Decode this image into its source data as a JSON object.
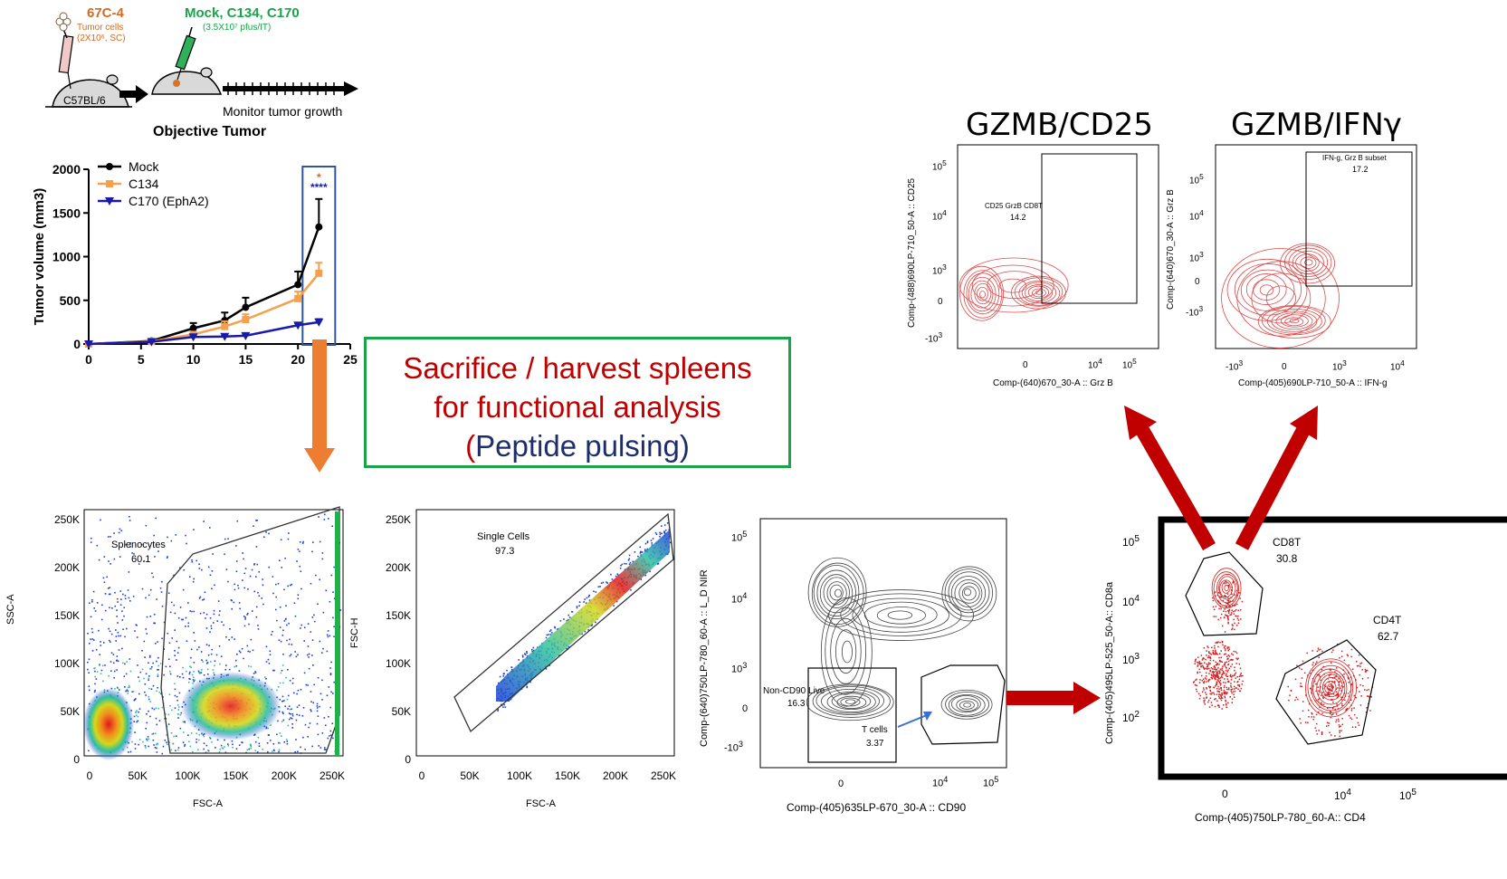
{
  "schema": {
    "cell_line": "67C-4",
    "tumor_cells": "Tumor cells",
    "tumor_dose": "(2X10⁶, SC)",
    "treatments": "Mock, C134, C170",
    "treatment_dose": "(3.5X10⁷ pfus/IT)",
    "mouse_strain": "C57BL/6",
    "monitor_label": "Monitor tumor growth",
    "title": "Objective Tumor"
  },
  "growth_chart": {
    "chart_data": {
      "type": "line",
      "ylabel": "Tumor volume  (mm3)",
      "xlim": [
        0,
        25
      ],
      "ylim": [
        0,
        2000
      ],
      "x_ticks": [
        "0",
        "5",
        "10",
        "15",
        "20",
        "25"
      ],
      "y_ticks": [
        "0",
        "500",
        "1000",
        "1500",
        "2000"
      ],
      "series": [
        {
          "name": "Mock",
          "color": "#000000",
          "marker": "circle",
          "x": [
            0,
            6,
            10,
            13,
            15,
            20,
            22
          ],
          "y": [
            0,
            35,
            180,
            270,
            420,
            680,
            1340
          ],
          "err": [
            0,
            10,
            60,
            90,
            110,
            150,
            320
          ]
        },
        {
          "name": "C134",
          "color": "#f5a04a",
          "marker": "square",
          "x": [
            0,
            6,
            10,
            13,
            15,
            20,
            22
          ],
          "y": [
            0,
            30,
            110,
            200,
            280,
            520,
            810
          ],
          "err": [
            0,
            10,
            30,
            60,
            60,
            80,
            120
          ]
        },
        {
          "name": "C170 (EphA2)",
          "color": "#1a1aa8",
          "marker": "triangle",
          "x": [
            0,
            6,
            10,
            13,
            15,
            20,
            22
          ],
          "y": [
            0,
            25,
            80,
            85,
            95,
            215,
            250
          ],
          "err": [
            0,
            5,
            10,
            10,
            10,
            25,
            35
          ]
        }
      ],
      "annotations": [
        {
          "text": "**",
          "x": 13,
          "color": "#1a1aa8"
        },
        {
          "text": "**",
          "x": 15,
          "color": "#1a1aa8"
        },
        {
          "text": "***",
          "x": 20,
          "color": "#1a1aa8"
        },
        {
          "text": "*",
          "x": 22,
          "color": "#e8631a"
        },
        {
          "text": "****",
          "x": 22,
          "color": "#1a1aa8"
        }
      ]
    }
  },
  "callout": {
    "line1": "Sacrifice / harvest spleens",
    "line2": "for functional analysis",
    "paren_open": "(",
    "line3": "Peptide pulsing)"
  },
  "plot_ssc": {
    "y_axis": "SSC-A",
    "x_axis": "FSC-A",
    "y_ticks": [
      "250K",
      "200K",
      "150K",
      "100K",
      "50K",
      "0"
    ],
    "x_ticks": [
      "0",
      "50K",
      "100K",
      "150K",
      "200K",
      "250K"
    ],
    "gate_name": "Splenocytes",
    "gate_value": "60.1"
  },
  "plot_fsch": {
    "y_axis": "FSC-H",
    "x_axis": "FSC-A",
    "y_ticks": [
      "250K",
      "200K",
      "150K",
      "100K",
      "50K",
      "0"
    ],
    "x_ticks": [
      "0",
      "50K",
      "100K",
      "150K",
      "200K",
      "250K"
    ],
    "gate_name": "Single Cells",
    "gate_value": "97.3"
  },
  "plot_cd90": {
    "y_axis": "Comp-(640)750LP-780_60-A :: L_D NIR",
    "x_axis": "Comp-(405)635LP-670_30-A :: CD90",
    "gate1_name": "Non-CD90 Live",
    "gate1_value": "16.3",
    "gate2_name": "T cells",
    "gate2_value": "3.37"
  },
  "plot_cd8": {
    "y_axis": "Comp-(405)495LP-525_50-A:: CD8a",
    "x_axis": "Comp-(405)750LP-780_60-A:: CD4",
    "gate1_name": "CD8T",
    "gate1_value": "30.8",
    "gate2_name": "CD4T",
    "gate2_value": "62.7"
  },
  "plot_cd25": {
    "title": "GZMB/CD25",
    "y_axis": "Comp-(488)690LP-710_50-A :: CD25",
    "x_axis": "Comp-(640)670_30-A :: Grz B",
    "gate_name": "CD25 GrzB CD8T",
    "gate_value": "14.2"
  },
  "plot_ifng": {
    "title": "GZMB/IFNγ",
    "y_axis": "Comp-(640)670_30-A :: Grz B",
    "x_axis": "Comp-(405)690LP-710_50-A :: IFN-g",
    "gate_name": "IFN-g, Grz B subset",
    "gate_value": "17.2"
  },
  "colors": {
    "mock": "#000000",
    "c134": "#f5a04a",
    "c170": "#1a1aa8",
    "arrow_orange": "#ed7d31",
    "arrow_red": "#c00000",
    "callout_border": "#1aa34a",
    "highlight_box": "#2f5597"
  }
}
